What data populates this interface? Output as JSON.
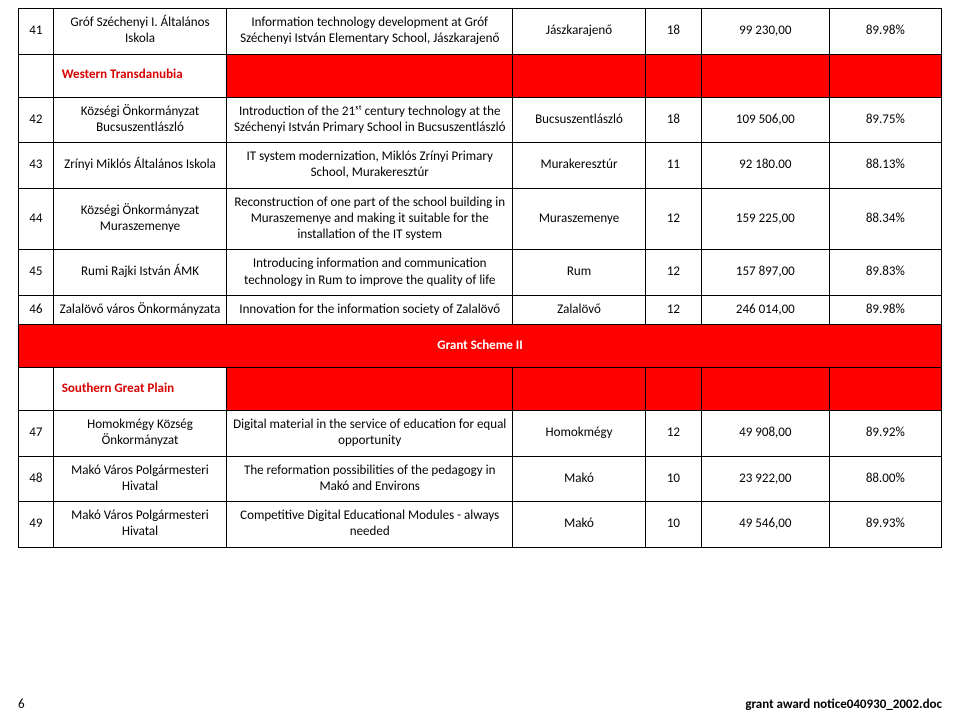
{
  "rows": [
    {
      "type": "data",
      "num": "41",
      "org": "Gróf Széchenyi I. Általános Iskola",
      "desc": "Information technology development at Gróf Széchenyi István Elementary School, Jászkarajenő",
      "loc": "Jászkarajenő",
      "n1": "18",
      "n2": "99 230,00",
      "pct": "89.98%"
    },
    {
      "type": "region",
      "label": "Western Transdanubia"
    },
    {
      "type": "data",
      "num": "42",
      "org": "Községi Önkormányzat Bucsuszentlászló",
      "desc": "Introduction of the 21ˢᵗ century technology at the Széchenyi István Primary School in Bucsuszentlászló",
      "loc": "Bucsuszentlászló",
      "n1": "18",
      "n2": "109 506,00",
      "pct": "89.75%"
    },
    {
      "type": "data",
      "num": "43",
      "org": "Zrínyi Miklós Általános Iskola",
      "desc": "IT system modernization, Miklós Zrínyi Primary School, Murakeresztúr",
      "loc": "Murakeresztúr",
      "n1": "11",
      "n2": "92 180.00",
      "pct": "88.13%"
    },
    {
      "type": "data",
      "num": "44",
      "org": "Községi Önkormányzat Muraszemenye",
      "desc": "Reconstruction of one part of the school building in Muraszemenye and making it suitable for the installation of the IT system",
      "loc": "Muraszemenye",
      "n1": "12",
      "n2": "159 225,00",
      "pct": "88.34%"
    },
    {
      "type": "data",
      "num": "45",
      "org": "Rumi Rajki István ÁMK",
      "desc": "Introducing information and communication technology in Rum to improve the quality of life",
      "loc": "Rum",
      "n1": "12",
      "n2": "157 897,00",
      "pct": "89.83%"
    },
    {
      "type": "data",
      "num": "46",
      "org": "Zalalövő város Önkormányzata",
      "desc": "Innovation for the information society of Zalalövő",
      "loc": "Zalalövő",
      "n1": "12",
      "n2": "246 014,00",
      "pct": "89.98%"
    },
    {
      "type": "scheme",
      "label": "Grant Scheme II"
    },
    {
      "type": "region",
      "label": "Southern Great Plain"
    },
    {
      "type": "data",
      "num": "47",
      "org": "Homokmégy Község Önkormányzat",
      "desc": "Digital material in the service of education for equal opportunity",
      "loc": "Homokmégy",
      "n1": "12",
      "n2": "49 908,00",
      "pct": "89.92%"
    },
    {
      "type": "data",
      "num": "48",
      "org": "Makó Város Polgármesteri Hivatal",
      "desc": "The reformation possibilities of the pedagogy in Makó and Environs",
      "loc": "Makó",
      "n1": "10",
      "n2": "23 922,00",
      "pct": "88.00%"
    },
    {
      "type": "data",
      "num": "49",
      "org": "Makó Város Polgármesteri Hivatal",
      "desc": "Competitive Digital Educational Modules - always needed",
      "loc": "Makó",
      "n1": "10",
      "n2": "49 546,00",
      "pct": "89.93%"
    }
  ],
  "footer": {
    "page": "6",
    "file": "grant award notice040930_2002.doc"
  }
}
